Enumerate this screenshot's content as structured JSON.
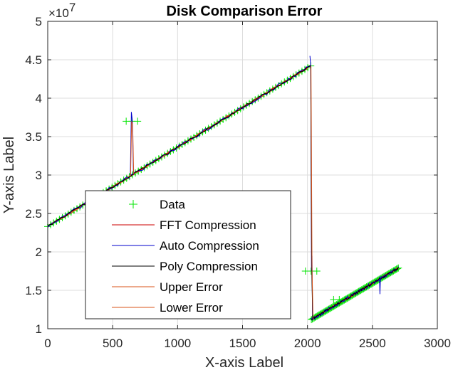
{
  "chart_data": {
    "type": "line",
    "title": "Disk Comparison Error",
    "xlabel": "X-axis Label",
    "ylabel": "Y-axis Label",
    "xlim": [
      0,
      3000
    ],
    "ylim": [
      10000000,
      50000000
    ],
    "x_ticks": [
      0,
      500,
      1000,
      1500,
      2000,
      2500,
      3000
    ],
    "y_ticks": [
      10000000,
      15000000,
      20000000,
      25000000,
      30000000,
      35000000,
      40000000,
      45000000,
      50000000
    ],
    "x_tick_labels": [
      "0",
      "500",
      "1000",
      "1500",
      "2000",
      "2500",
      "3000"
    ],
    "y_tick_labels": [
      "1",
      "1.5",
      "2",
      "2.5",
      "3",
      "3.5",
      "4",
      "4.5",
      "5"
    ],
    "y_exponent_base": "×10",
    "y_exponent_power": "7",
    "grid": true,
    "legend_placement": "bottom-left",
    "segments": [
      {
        "x": [
          0,
          2025
        ],
        "y": [
          23300000,
          44200000
        ]
      },
      {
        "x": [
          2030,
          2700
        ],
        "y": [
          11200000,
          17900000
        ]
      }
    ],
    "spikes": [
      {
        "x": 648,
        "y": 37000000
      },
      {
        "x": 2028,
        "y": 17500000
      },
      {
        "x": 2245,
        "y": 13800000
      }
    ],
    "series": [
      {
        "name": "Data",
        "marker": "+",
        "color": "#00e600"
      },
      {
        "name": "FFT Compression",
        "color": "#cc0000"
      },
      {
        "name": "Auto Compression",
        "color": "#0000cc"
      },
      {
        "name": "Poly Compression",
        "color": "#000000"
      },
      {
        "name": "Upper Error",
        "color": "#d95319"
      },
      {
        "name": "Lower Error",
        "color": "#d95319"
      }
    ]
  }
}
